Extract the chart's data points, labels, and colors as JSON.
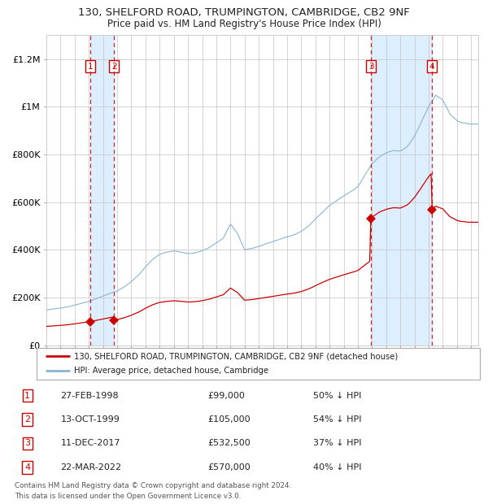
{
  "title1": "130, SHELFORD ROAD, TRUMPINGTON, CAMBRIDGE, CB2 9NF",
  "title2": "Price paid vs. HM Land Registry's House Price Index (HPI)",
  "legend_line1": "130, SHELFORD ROAD, TRUMPINGTON, CAMBRIDGE, CB2 9NF (detached house)",
  "legend_line2": "HPI: Average price, detached house, Cambridge",
  "transactions": [
    {
      "num": 1,
      "date": "27-FEB-1998",
      "price": 99000,
      "pct": "50% ↓ HPI",
      "date_x": 1998.12
    },
    {
      "num": 2,
      "date": "13-OCT-1999",
      "price": 105000,
      "pct": "54% ↓ HPI",
      "date_x": 1999.78
    },
    {
      "num": 3,
      "date": "11-DEC-2017",
      "price": 532500,
      "pct": "37% ↓ HPI",
      "date_x": 2017.94
    },
    {
      "num": 4,
      "date": "22-MAR-2022",
      "price": 570000,
      "pct": "40% ↓ HPI",
      "date_x": 2022.22
    }
  ],
  "footer1": "Contains HM Land Registry data © Crown copyright and database right 2024.",
  "footer2": "This data is licensed under the Open Government Licence v3.0.",
  "hpi_color": "#8ab4d4",
  "price_color": "#cc0000",
  "marker_color": "#cc0000",
  "vline_color": "#cc0000",
  "shade_color": "#ddeeff",
  "background_color": "#ffffff",
  "grid_color": "#cccccc",
  "yticks": [
    0,
    200000,
    400000,
    600000,
    800000,
    1000000,
    1200000
  ],
  "ylabels": [
    "£0",
    "£200K",
    "£400K",
    "£600K",
    "£800K",
    "£1M",
    "£1.2M"
  ],
  "ylim": [
    0,
    1300000
  ],
  "xlim_start": 1995.0,
  "xlim_end": 2025.5,
  "hpi_control_points": [
    [
      1995.0,
      148000
    ],
    [
      1995.5,
      152000
    ],
    [
      1996.0,
      155000
    ],
    [
      1996.5,
      160000
    ],
    [
      1997.0,
      167000
    ],
    [
      1997.5,
      175000
    ],
    [
      1998.0,
      183000
    ],
    [
      1998.5,
      195000
    ],
    [
      1999.0,
      207000
    ],
    [
      1999.5,
      218000
    ],
    [
      2000.0,
      228000
    ],
    [
      2000.5,
      245000
    ],
    [
      2001.0,
      268000
    ],
    [
      2001.5,
      295000
    ],
    [
      2002.0,
      330000
    ],
    [
      2002.5,
      360000
    ],
    [
      2003.0,
      380000
    ],
    [
      2003.5,
      390000
    ],
    [
      2004.0,
      395000
    ],
    [
      2004.5,
      390000
    ],
    [
      2005.0,
      385000
    ],
    [
      2005.5,
      388000
    ],
    [
      2006.0,
      398000
    ],
    [
      2006.5,
      410000
    ],
    [
      2007.0,
      430000
    ],
    [
      2007.5,
      450000
    ],
    [
      2008.0,
      510000
    ],
    [
      2008.5,
      470000
    ],
    [
      2009.0,
      400000
    ],
    [
      2009.5,
      405000
    ],
    [
      2010.0,
      415000
    ],
    [
      2010.5,
      425000
    ],
    [
      2011.0,
      435000
    ],
    [
      2011.5,
      445000
    ],
    [
      2012.0,
      455000
    ],
    [
      2012.5,
      465000
    ],
    [
      2013.0,
      478000
    ],
    [
      2013.5,
      500000
    ],
    [
      2014.0,
      530000
    ],
    [
      2014.5,
      560000
    ],
    [
      2015.0,
      590000
    ],
    [
      2015.5,
      610000
    ],
    [
      2016.0,
      630000
    ],
    [
      2016.5,
      650000
    ],
    [
      2017.0,
      670000
    ],
    [
      2017.5,
      720000
    ],
    [
      2018.0,
      770000
    ],
    [
      2018.5,
      800000
    ],
    [
      2019.0,
      820000
    ],
    [
      2019.5,
      830000
    ],
    [
      2020.0,
      825000
    ],
    [
      2020.5,
      845000
    ],
    [
      2021.0,
      890000
    ],
    [
      2021.5,
      950000
    ],
    [
      2022.0,
      1010000
    ],
    [
      2022.5,
      1060000
    ],
    [
      2023.0,
      1040000
    ],
    [
      2023.5,
      980000
    ],
    [
      2024.0,
      950000
    ],
    [
      2024.5,
      940000
    ],
    [
      2025.0,
      935000
    ]
  ],
  "table_data": [
    [
      1,
      "27-FEB-1998",
      "£99,000",
      "50% ↓ HPI"
    ],
    [
      2,
      "13-OCT-1999",
      "£105,000",
      "54% ↓ HPI"
    ],
    [
      3,
      "11-DEC-2017",
      "£532,500",
      "37% ↓ HPI"
    ],
    [
      4,
      "22-MAR-2022",
      "£570,000",
      "40% ↓ HPI"
    ]
  ]
}
